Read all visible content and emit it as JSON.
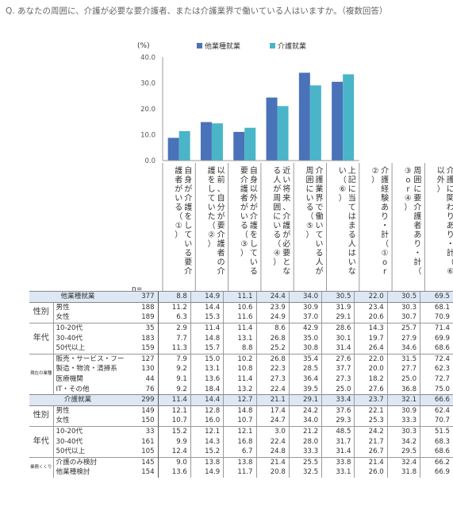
{
  "question": "Q. あなたの周囲に、介護が必要な要介護者、または介護業界で働いている人はいますか。（複数回答）",
  "chart_data": {
    "type": "bar",
    "ylabel": "(%)",
    "ylim": [
      0,
      40
    ],
    "yticks": [
      "40.0",
      "30.0",
      "20.0",
      "10.0",
      "0.0"
    ],
    "grid": false,
    "legend_position": "top",
    "categories": [
      "自身が介護をしている要介護者がいる（①）",
      "以前、自分が要介護者の介護をしていた（②）",
      "自身以外が介護をしている要介護者がいる（③）",
      "近い将来、介護が必要となる人が周囲にいる（④）",
      "介護業界で働いている人が周囲にいる（⑤）",
      "上記に当てはまる人はいない（⑥）"
    ],
    "series": [
      {
        "name": "他業種就業",
        "color": "#4a72b8",
        "values": [
          8.8,
          14.9,
          11.1,
          24.4,
          34.0,
          30.5
        ]
      },
      {
        "name": "介護就業",
        "color": "#4ab5c9",
        "values": [
          11.4,
          14.4,
          12.7,
          21.1,
          29.1,
          33.4
        ]
      }
    ]
  },
  "columns": [
    "自身が介護をしている要介護者がいる（①）",
    "以前、自分が要介護者の介護をしていた（②）",
    "自身以外が介護をしている要介護者がいる（③）",
    "近い将来、介護が必要となる人が周囲にいる（④）",
    "介護業界で働いている人が周囲にいる（⑤）",
    "上記に当てはまる人はいない（⑥）",
    "介護経験あり・計（①or②）",
    "周囲に要介護者あり・計（③or④）",
    "介護に関わりあり・計（⑥以外）"
  ],
  "n_label": "n=",
  "table": [
    {
      "group": "",
      "label": "他業種就業",
      "total": true,
      "values": [
        "377",
        "8.8",
        "14.9",
        "11.1",
        "24.4",
        "34.0",
        "30.5",
        "22.0",
        "30.5",
        "69.5"
      ]
    },
    {
      "group": "性別",
      "label": "男性",
      "values": [
        "188",
        "11.2",
        "14.4",
        "10.6",
        "23.9",
        "30.9",
        "31.9",
        "23.4",
        "30.3",
        "68.1"
      ]
    },
    {
      "group": "",
      "label": "女性",
      "values": [
        "189",
        "6.3",
        "15.3",
        "11.6",
        "24.9",
        "37.0",
        "29.1",
        "20.6",
        "30.7",
        "70.9"
      ]
    },
    {
      "group": "年代",
      "label": "10-20代",
      "values": [
        "35",
        "2.9",
        "11.4",
        "11.4",
        "8.6",
        "42.9",
        "28.6",
        "14.3",
        "25.7",
        "71.4"
      ]
    },
    {
      "group": "",
      "label": "30-40代",
      "values": [
        "183",
        "7.7",
        "14.8",
        "13.1",
        "26.8",
        "35.0",
        "30.1",
        "19.7",
        "27.9",
        "69.9"
      ]
    },
    {
      "group": "",
      "label": "50代以上",
      "values": [
        "159",
        "11.3",
        "15.7",
        "8.8",
        "25.2",
        "30.8",
        "31.4",
        "26.4",
        "34.6",
        "68.6"
      ]
    },
    {
      "group": "現在の業種",
      "label": "販売・サービス・フード系",
      "values": [
        "127",
        "7.9",
        "15.0",
        "10.2",
        "26.8",
        "35.4",
        "27.6",
        "22.0",
        "31.5",
        "72.4"
      ]
    },
    {
      "group": "",
      "label": "製造・物流・清掃系",
      "values": [
        "130",
        "9.2",
        "13.1",
        "10.8",
        "22.3",
        "28.5",
        "37.7",
        "20.0",
        "27.7",
        "62.3"
      ]
    },
    {
      "group": "",
      "label": "医療機関",
      "values": [
        "44",
        "9.1",
        "13.6",
        "11.4",
        "27.3",
        "36.4",
        "27.3",
        "18.2",
        "25.0",
        "72.7"
      ]
    },
    {
      "group": "",
      "label": "IT・その他",
      "values": [
        "76",
        "9.2",
        "18.4",
        "13.2",
        "22.4",
        "39.5",
        "25.0",
        "27.6",
        "36.8",
        "75.0"
      ]
    },
    {
      "group": "",
      "label": "介護就業",
      "total": true,
      "values": [
        "299",
        "11.4",
        "14.4",
        "12.7",
        "21.1",
        "29.1",
        "33.4",
        "23.7",
        "32.1",
        "66.6"
      ]
    },
    {
      "group": "性別",
      "label": "男性",
      "values": [
        "149",
        "12.1",
        "12.8",
        "14.8",
        "17.4",
        "24.2",
        "37.6",
        "22.1",
        "30.9",
        "62.4"
      ]
    },
    {
      "group": "",
      "label": "女性",
      "values": [
        "150",
        "10.7",
        "16.0",
        "10.7",
        "24.7",
        "34.0",
        "29.3",
        "25.3",
        "33.3",
        "70.7"
      ]
    },
    {
      "group": "年代",
      "label": "10-20代",
      "values": [
        "33",
        "15.2",
        "12.1",
        "12.1",
        "3.0",
        "21.2",
        "48.5",
        "24.2",
        "30.3",
        "51.5"
      ]
    },
    {
      "group": "",
      "label": "30-40代",
      "values": [
        "161",
        "9.9",
        "14.3",
        "16.8",
        "22.4",
        "28.0",
        "31.7",
        "21.7",
        "34.2",
        "68.3"
      ]
    },
    {
      "group": "",
      "label": "50代以上",
      "values": [
        "105",
        "12.4",
        "15.2",
        "6.7",
        "24.8",
        "33.3",
        "31.4",
        "26.7",
        "29.5",
        "68.6"
      ]
    },
    {
      "group": "業務くくり",
      "label": "介護のみ検討",
      "values": [
        "145",
        "9.0",
        "13.8",
        "13.8",
        "21.4",
        "25.5",
        "33.8",
        "21.4",
        "32.4",
        "66.2"
      ]
    },
    {
      "group": "",
      "label": "他業種検討",
      "values": [
        "154",
        "13.6",
        "14.9",
        "11.7",
        "20.8",
        "32.5",
        "33.1",
        "26.0",
        "31.8",
        "66.9"
      ]
    }
  ]
}
